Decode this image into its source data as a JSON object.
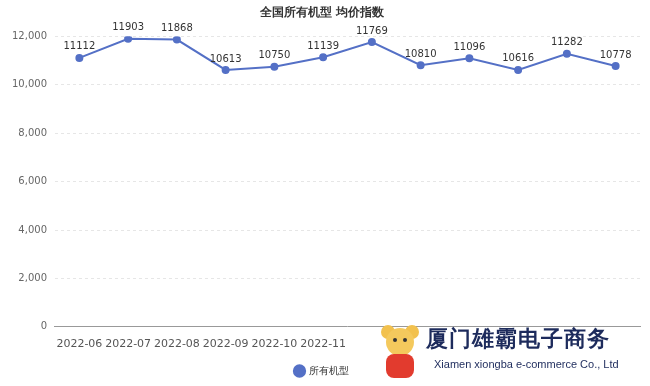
{
  "chart_data": {
    "type": "line",
    "title": "全国所有机型 均价指数",
    "categories": [
      "2022-06",
      "2022-07",
      "2022-08",
      "2022-09",
      "2022-10",
      "2022-11",
      null,
      null,
      null,
      null,
      null,
      null
    ],
    "series": [
      {
        "name": "所有机型",
        "color": "#5470c6",
        "marker": "circle",
        "values": [
          11112,
          11903,
          11868,
          10613,
          10750,
          11139,
          11769,
          10810,
          11096,
          10616,
          11282,
          10778
        ]
      }
    ],
    "ylim": [
      0,
      12000
    ],
    "yticks": [
      0,
      {
        "value": 2000,
        "label": "2,000"
      },
      {
        "value": 4000,
        "label": "4,000"
      },
      {
        "value": 6000,
        "label": "6,000"
      },
      {
        "value": 8000,
        "label": "8,000"
      },
      {
        "value": 10000,
        "label": "10,000"
      },
      {
        "value": 12000,
        "label": "12,000"
      }
    ],
    "grid": true,
    "legend": "bottom",
    "data_labels": true
  },
  "watermark": {
    "text": "厦门雄霸电子商务",
    "subtext": "Xiamen xiongba e-commerce Co., Ltd"
  }
}
